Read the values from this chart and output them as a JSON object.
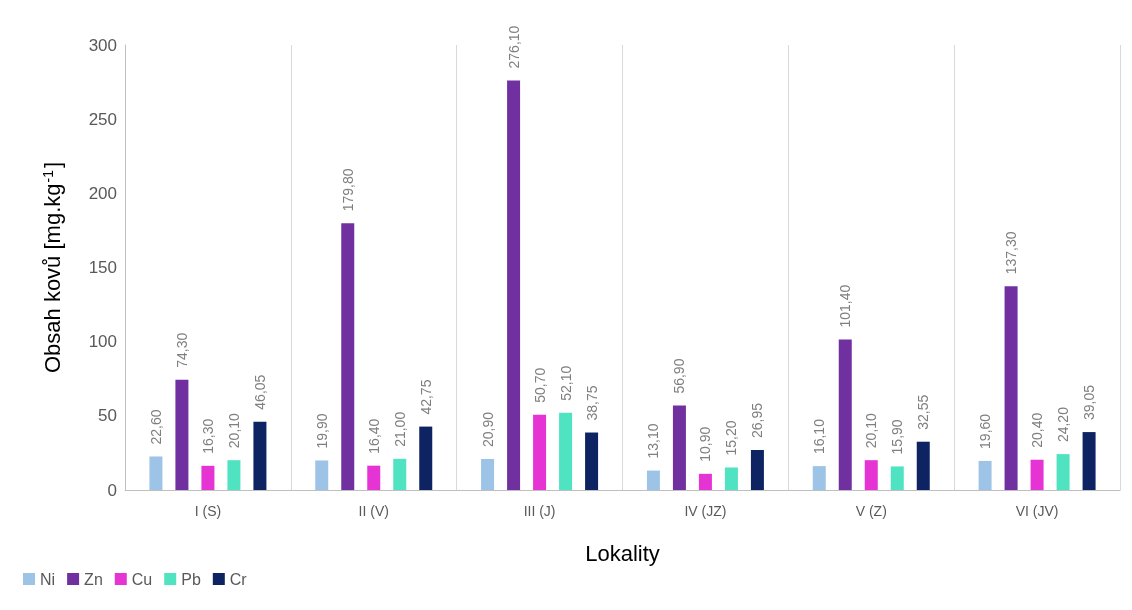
{
  "chart_data": {
    "type": "bar",
    "xlabel": "Lokality",
    "ylabel": "Obsah kovů [mg.kg$^{-1}$]",
    "categories": [
      "I (S)",
      "II (V)",
      "III (J)",
      "IV (JZ)",
      "V (Z)",
      "VI (JV)"
    ],
    "series": [
      {
        "name": "Ni",
        "color": "#9dc3e6",
        "values": [
          22.6,
          19.9,
          20.9,
          13.1,
          16.1,
          19.6
        ],
        "value_labels": [
          "22,60",
          "19,90",
          "20,90",
          "13,10",
          "16,10",
          "19,60"
        ]
      },
      {
        "name": "Zn",
        "color": "#7030a0",
        "values": [
          74.3,
          179.8,
          276.1,
          56.9,
          101.4,
          137.3
        ],
        "value_labels": [
          "74,30",
          "179,80",
          "276,10",
          "56,90",
          "101,40",
          "137,30"
        ]
      },
      {
        "name": "Cu",
        "color": "#e633d3",
        "values": [
          16.3,
          16.4,
          50.7,
          10.9,
          20.1,
          20.4
        ],
        "value_labels": [
          "16,30",
          "16,40",
          "50,70",
          "10,90",
          "20,10",
          "20,40"
        ]
      },
      {
        "name": "Pb",
        "color": "#4fe3c1",
        "values": [
          20.1,
          21.0,
          52.1,
          15.2,
          15.9,
          24.2
        ],
        "value_labels": [
          "20,10",
          "21,00",
          "52,10",
          "15,20",
          "15,90",
          "24,20"
        ]
      },
      {
        "name": "Cr",
        "color": "#0e2361",
        "values": [
          46.05,
          42.75,
          38.75,
          26.95,
          32.55,
          39.05
        ],
        "value_labels": [
          "46,05",
          "42,75",
          "38,75",
          "26,95",
          "32,55",
          "39,05"
        ]
      }
    ],
    "ylim": [
      0,
      300
    ],
    "yticks": [
      0,
      50,
      100,
      150,
      200,
      250,
      300
    ],
    "grid": "x",
    "legend": "bottom left"
  }
}
